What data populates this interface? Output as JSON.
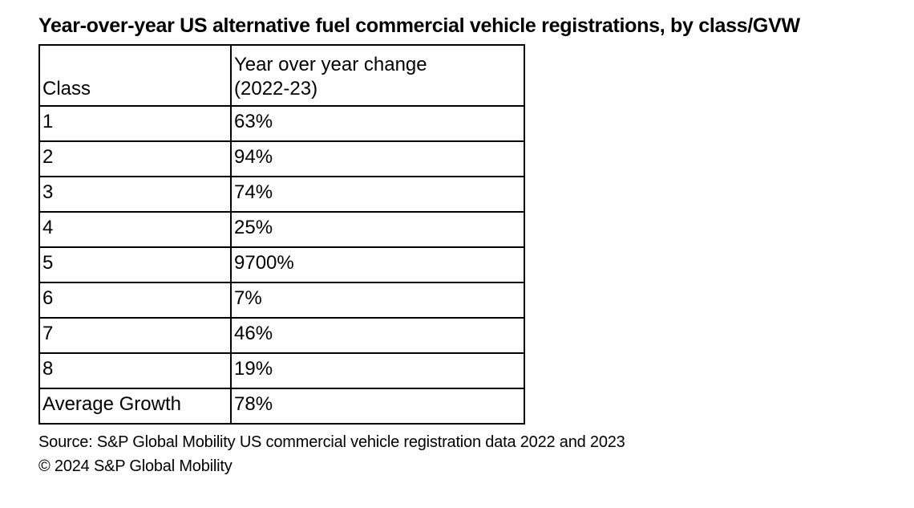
{
  "title": "Year-over-year US alternative fuel commercial vehicle registrations, by class/GVW",
  "table": {
    "header": {
      "class_label": "Class",
      "change_label": "Year over year change\n(2022-23)"
    },
    "rows": [
      {
        "class": "1",
        "change": "63%"
      },
      {
        "class": "2",
        "change": "94%"
      },
      {
        "class": "3",
        "change": "74%"
      },
      {
        "class": "4",
        "change": "25%"
      },
      {
        "class": "5",
        "change": "9700%"
      },
      {
        "class": "6",
        "change": "7%"
      },
      {
        "class": "7",
        "change": "46%"
      },
      {
        "class": "8",
        "change": "19%"
      },
      {
        "class": "Average Growth",
        "change": "78%"
      }
    ]
  },
  "footer": {
    "source": "Source: S&P Global Mobility US commercial vehicle registration data 2022 and 2023",
    "copyright": "© 2024 S&P Global Mobility"
  },
  "colors": {
    "text": "#000000",
    "background": "#ffffff",
    "border": "#000000"
  },
  "chart_data": {
    "type": "table",
    "title": "Year-over-year US alternative fuel commercial vehicle registrations, by class/GVW",
    "columns": [
      "Class",
      "Year over year change (2022-23)"
    ],
    "categories": [
      "1",
      "2",
      "3",
      "4",
      "5",
      "6",
      "7",
      "8",
      "Average Growth"
    ],
    "values_percent": [
      63,
      94,
      74,
      25,
      9700,
      7,
      46,
      19,
      78
    ],
    "source": "Source: S&P Global Mobility US commercial vehicle registration data 2022 and 2023",
    "copyright": "© 2024 S&P Global Mobility"
  }
}
